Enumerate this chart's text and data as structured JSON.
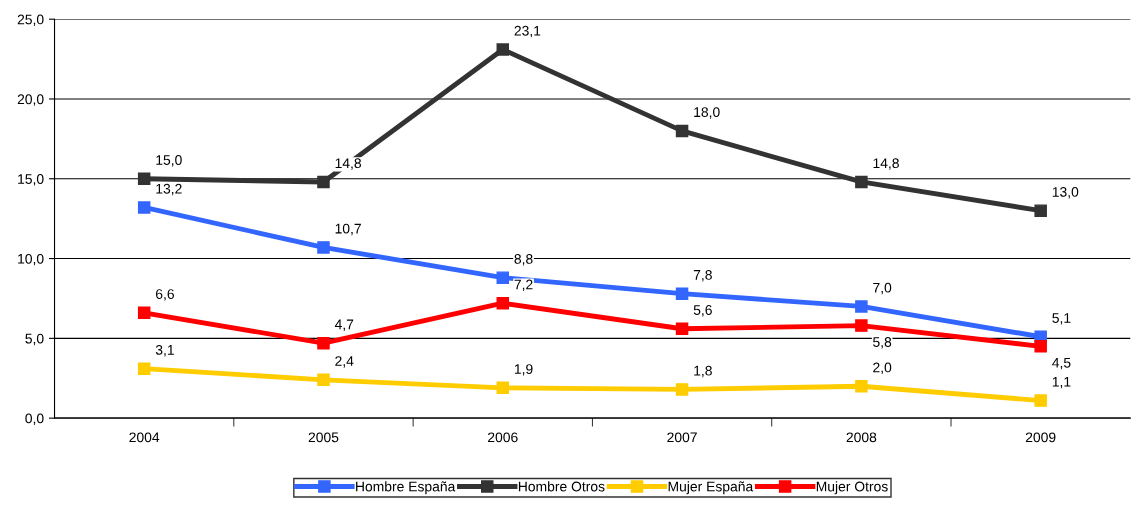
{
  "chart_data": {
    "type": "line",
    "categories": [
      "2004",
      "2005",
      "2006",
      "2007",
      "2008",
      "2009"
    ],
    "series": [
      {
        "name": "Hombre España",
        "color": "#3366ff",
        "values": [
          13.2,
          10.7,
          8.8,
          7.8,
          7.0,
          5.1
        ],
        "value_labels": [
          "13,2",
          "10,7",
          "8,8",
          "7,8",
          "7,0",
          "5,1"
        ]
      },
      {
        "name": "Hombre Otros",
        "color": "#333333",
        "values": [
          15.0,
          14.8,
          23.1,
          18.0,
          14.8,
          13.0
        ],
        "value_labels": [
          "15,0",
          "14,8",
          "23,1",
          "18,0",
          "14,8",
          "13,0"
        ]
      },
      {
        "name": "Mujer España",
        "color": "#ffcc00",
        "values": [
          3.1,
          2.4,
          1.9,
          1.8,
          2.0,
          1.1
        ],
        "value_labels": [
          "3,1",
          "2,4",
          "1,9",
          "1,8",
          "2,0",
          "1,1"
        ]
      },
      {
        "name": "Mujer Otros",
        "color": "#ff0000",
        "values": [
          6.6,
          4.7,
          7.2,
          5.6,
          5.8,
          4.5
        ],
        "value_labels": [
          "6,6",
          "4,7",
          "7,2",
          "5,6",
          "5,8",
          "4,5"
        ]
      }
    ],
    "ylim": [
      0,
      25
    ],
    "yticks": [
      {
        "value": 0,
        "label": "0,0"
      },
      {
        "value": 5,
        "label": "5,0"
      },
      {
        "value": 10,
        "label": "10,0"
      },
      {
        "value": 15,
        "label": "15,0"
      },
      {
        "value": 20,
        "label": "20,0"
      },
      {
        "value": 25,
        "label": "25,0"
      }
    ],
    "grid": "y",
    "legend": "bottom",
    "marker": "square",
    "line_style": "solid"
  }
}
